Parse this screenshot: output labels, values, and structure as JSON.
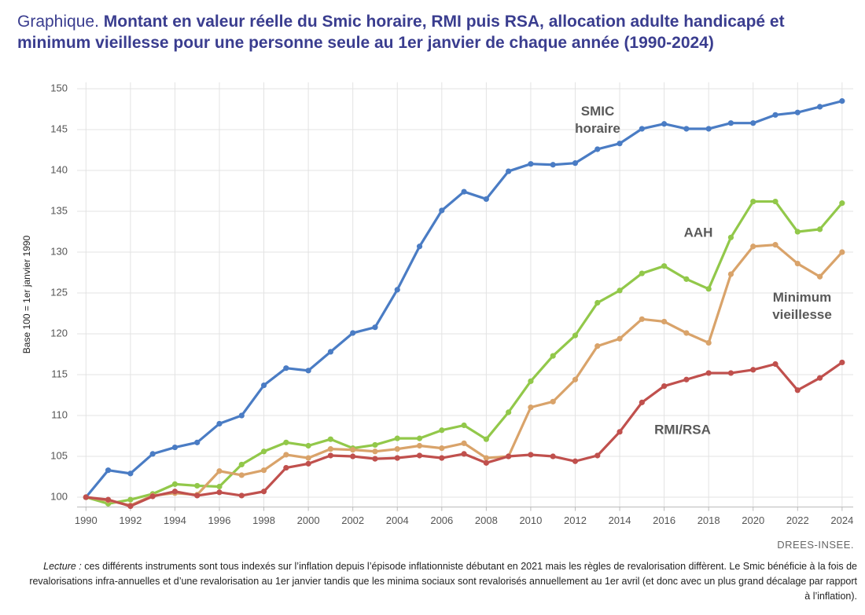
{
  "chart_data": {
    "type": "line",
    "title_label": "Graphique.",
    "title": "Montant en valeur réelle du Smic horaire, RMI puis RSA, allocation adulte handicapé et minimum vieillesse pour une personne seule au 1er janvier de chaque année (1990-2024)",
    "y_label": "Base 100 = 1er janvier 1990",
    "source": "DREES-INSEE.",
    "note_label": "Lecture :",
    "note": "ces différents instruments sont tous indexés sur l’inflation depuis l’épisode inflationniste débutant en 2021 mais les règles de revalorisation diffèrent. Le Smic bénéficie à la fois de revalorisations infra-annuelles et d’une revalorisation au 1er janvier tandis que les minima sociaux sont revalorisés annuellement au 1er avril (et donc avec un plus grand décalage par rapport à l’inflation).",
    "x": [
      1990,
      1991,
      1992,
      1993,
      1994,
      1995,
      1996,
      1997,
      1998,
      1999,
      2000,
      2001,
      2002,
      2003,
      2004,
      2005,
      2006,
      2007,
      2008,
      2009,
      2010,
      2011,
      2012,
      2013,
      2014,
      2015,
      2016,
      2017,
      2018,
      2019,
      2020,
      2021,
      2022,
      2023,
      2024
    ],
    "series": [
      {
        "name": "SMIC horaire",
        "color": "#4a7cc4",
        "values": [
          100,
          103.3,
          102.9,
          105.3,
          106.1,
          106.7,
          109.0,
          110.0,
          113.7,
          115.8,
          115.5,
          117.8,
          120.1,
          120.8,
          125.4,
          130.7,
          135.1,
          137.4,
          136.5,
          139.9,
          140.8,
          140.7,
          140.9,
          142.6,
          143.3,
          145.1,
          145.7,
          145.1,
          145.1,
          145.8,
          145.8,
          146.8,
          147.1,
          147.8,
          148.5
        ]
      },
      {
        "name": "AAH",
        "color": "#92c84a",
        "values": [
          100,
          99.2,
          99.7,
          100.4,
          101.6,
          101.4,
          101.3,
          104.0,
          105.6,
          106.7,
          106.3,
          107.1,
          106.0,
          106.4,
          107.2,
          107.2,
          108.2,
          108.8,
          107.1,
          110.4,
          114.2,
          117.3,
          119.8,
          123.8,
          125.3,
          127.4,
          128.3,
          126.7,
          125.5,
          131.8,
          136.2,
          136.2,
          132.5,
          132.8,
          136.0
        ]
      },
      {
        "name": "Minimum vieillesse",
        "color": "#d9a36a",
        "values": [
          100,
          99.6,
          99.0,
          100.2,
          100.5,
          100.3,
          103.2,
          102.7,
          103.3,
          105.2,
          104.8,
          105.9,
          105.8,
          105.6,
          105.9,
          106.3,
          106.0,
          106.6,
          104.8,
          105.0,
          111.0,
          111.7,
          114.4,
          118.5,
          119.4,
          121.8,
          121.5,
          120.1,
          118.9,
          127.3,
          130.7,
          130.9,
          128.6,
          127.0,
          130.0
        ]
      },
      {
        "name": "RMI/RSA",
        "color": "#c0504d",
        "values": [
          100,
          99.7,
          98.9,
          100.1,
          100.7,
          100.2,
          100.6,
          100.2,
          100.7,
          103.6,
          104.1,
          105.1,
          105.0,
          104.7,
          104.8,
          105.1,
          104.8,
          105.3,
          104.2,
          105.0,
          105.2,
          105.0,
          104.4,
          105.1,
          108.0,
          111.6,
          113.6,
          114.4,
          115.2,
          115.2,
          115.6,
          116.3,
          113.1,
          114.6,
          116.5
        ]
      }
    ],
    "xlim": [
      1989.6,
      2024.5
    ],
    "xticks": [
      1990,
      1992,
      1994,
      1996,
      1998,
      2000,
      2002,
      2004,
      2006,
      2008,
      2010,
      2012,
      2014,
      2016,
      2018,
      2020,
      2022,
      2024
    ],
    "ylim": [
      98.8,
      150.8
    ],
    "yticks": [
      100,
      105,
      110,
      115,
      120,
      125,
      130,
      135,
      140,
      145,
      150
    ],
    "grid": true
  }
}
